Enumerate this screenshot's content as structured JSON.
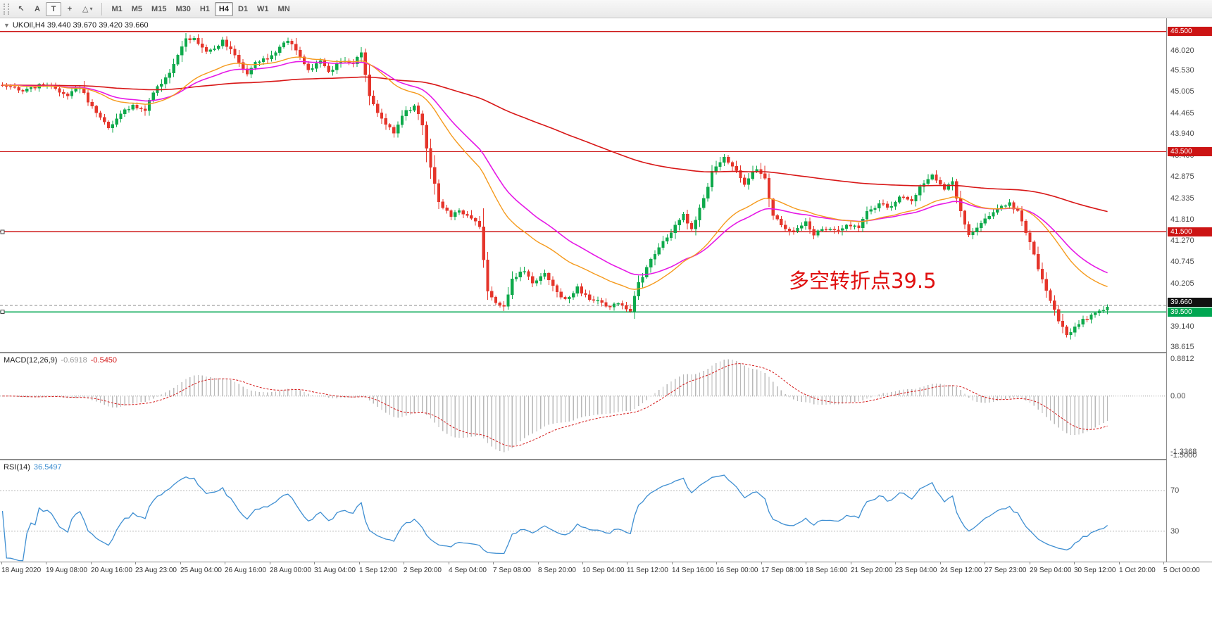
{
  "toolbar": {
    "tools": [
      {
        "name": "cursor",
        "glyph": "↖"
      },
      {
        "name": "label-a",
        "glyph": "A"
      },
      {
        "name": "text-box",
        "glyph": "T",
        "boxed": true
      },
      {
        "name": "crosshair",
        "glyph": "+"
      },
      {
        "name": "shapes",
        "glyph": "△",
        "caret": "▾"
      }
    ],
    "timeframes": [
      "M1",
      "M5",
      "M15",
      "M30",
      "H1",
      "H4",
      "D1",
      "W1",
      "MN"
    ],
    "active_timeframe": "H4"
  },
  "chart_title": {
    "collapse_icon": "▼",
    "text": "UKOil,H4 39.440 39.670 39.420 39.660"
  },
  "annotation": {
    "text": "多空转折点39.5",
    "color": "#e01010"
  },
  "chart_data": {
    "type": "candlestick",
    "symbol": "UKOil",
    "period": "H4",
    "ohlc": {
      "open": "39.440",
      "high": "39.670",
      "low": "39.420",
      "close": "39.660"
    },
    "num_candles": 272,
    "price_waypoints": [
      [
        0,
        45.15
      ],
      [
        5,
        45.0
      ],
      [
        10,
        45.2
      ],
      [
        16,
        44.9
      ],
      [
        19,
        45.1
      ],
      [
        22,
        44.6
      ],
      [
        26,
        44.1
      ],
      [
        29,
        44.45
      ],
      [
        32,
        44.65
      ],
      [
        35,
        44.5
      ],
      [
        37,
        45.0
      ],
      [
        41,
        45.45
      ],
      [
        43,
        45.9
      ],
      [
        45,
        46.3
      ],
      [
        47,
        46.35
      ],
      [
        50,
        46.0
      ],
      [
        52,
        46.1
      ],
      [
        54,
        46.25
      ],
      [
        57,
        45.9
      ],
      [
        60,
        45.45
      ],
      [
        62,
        45.7
      ],
      [
        65,
        45.85
      ],
      [
        67,
        46.0
      ],
      [
        70,
        46.3
      ],
      [
        73,
        45.9
      ],
      [
        75,
        45.55
      ],
      [
        78,
        45.75
      ],
      [
        80,
        45.5
      ],
      [
        83,
        45.75
      ],
      [
        86,
        45.7
      ],
      [
        88,
        45.95
      ],
      [
        90,
        44.9
      ],
      [
        93,
        44.3
      ],
      [
        96,
        44.0
      ],
      [
        98,
        44.4
      ],
      [
        101,
        44.65
      ],
      [
        103,
        44.2
      ],
      [
        104,
        43.6
      ],
      [
        107,
        42.2
      ],
      [
        110,
        41.9
      ],
      [
        112,
        42.05
      ],
      [
        115,
        41.85
      ],
      [
        117,
        41.6
      ],
      [
        119,
        40.0
      ],
      [
        121,
        39.7
      ],
      [
        123,
        39.6
      ],
      [
        125,
        40.3
      ],
      [
        128,
        40.55
      ],
      [
        130,
        40.2
      ],
      [
        133,
        40.45
      ],
      [
        136,
        40.0
      ],
      [
        138,
        39.8
      ],
      [
        141,
        40.1
      ],
      [
        143,
        39.9
      ],
      [
        146,
        39.75
      ],
      [
        149,
        39.65
      ],
      [
        151,
        39.7
      ],
      [
        154,
        39.55
      ],
      [
        156,
        40.2
      ],
      [
        159,
        40.8
      ],
      [
        161,
        41.1
      ],
      [
        164,
        41.5
      ],
      [
        167,
        41.9
      ],
      [
        169,
        41.6
      ],
      [
        172,
        42.3
      ],
      [
        174,
        43.0
      ],
      [
        177,
        43.35
      ],
      [
        180,
        43.0
      ],
      [
        182,
        42.7
      ],
      [
        185,
        43.1
      ],
      [
        187,
        42.8
      ],
      [
        189,
        41.9
      ],
      [
        192,
        41.6
      ],
      [
        194,
        41.5
      ],
      [
        197,
        41.75
      ],
      [
        199,
        41.45
      ],
      [
        202,
        41.6
      ],
      [
        205,
        41.5
      ],
      [
        207,
        41.7
      ],
      [
        210,
        41.6
      ],
      [
        212,
        42.0
      ],
      [
        215,
        42.2
      ],
      [
        218,
        42.1
      ],
      [
        220,
        42.4
      ],
      [
        223,
        42.3
      ],
      [
        225,
        42.6
      ],
      [
        228,
        42.9
      ],
      [
        231,
        42.6
      ],
      [
        233,
        42.75
      ],
      [
        235,
        42.0
      ],
      [
        237,
        41.4
      ],
      [
        239,
        41.6
      ],
      [
        242,
        41.9
      ],
      [
        244,
        42.1
      ],
      [
        247,
        42.2
      ],
      [
        249,
        42.0
      ],
      [
        251,
        41.5
      ],
      [
        254,
        40.6
      ],
      [
        256,
        40.0
      ],
      [
        259,
        39.3
      ],
      [
        261,
        38.9
      ],
      [
        263,
        39.15
      ],
      [
        266,
        39.35
      ],
      [
        269,
        39.5
      ],
      [
        271,
        39.66
      ]
    ],
    "y_axis": {
      "max": 46.83,
      "min": 38.5,
      "labels": [
        46.02,
        45.53,
        45.005,
        44.465,
        43.94,
        43.4,
        42.875,
        42.335,
        41.81,
        41.27,
        40.745,
        40.205,
        39.14,
        38.615
      ]
    },
    "hlines": [
      {
        "price": 46.5,
        "label": "46.500",
        "color": "#cc1414",
        "handle": false
      },
      {
        "price": 43.5,
        "label": "43.500",
        "color": "#cc1414",
        "handle": false
      },
      {
        "price": 41.5,
        "label": "41.500",
        "color": "#cc1414",
        "handle": true
      },
      {
        "price": 39.5,
        "label": "39.500",
        "color": "#00a651",
        "handle": true
      }
    ],
    "bid": {
      "price": 39.66,
      "label": "39.660",
      "box_color": "#111111",
      "line_color": "#8a8a8a"
    },
    "moving_averages": [
      {
        "name": "ma-slow",
        "period": 200,
        "color": "#d81717",
        "width": 1.6
      },
      {
        "name": "ma-medium",
        "period": 40,
        "color": "#e619e6",
        "width": 1.6
      },
      {
        "name": "ma-fast",
        "period": 28,
        "color": "#f59a1d",
        "width": 1.4
      }
    ],
    "candle_colors": {
      "bull": "#0EA94B",
      "bear": "#E5352B"
    },
    "macd": {
      "label": "MACD(12,26,9)",
      "value_main": "-0.6918",
      "value_signal": "-0.5450",
      "fast": 12,
      "slow": 26,
      "signal": 9,
      "scale_max": 1.02,
      "scale_min": -1.5,
      "peak_pos": 0.8812,
      "peak_neg": -1.3368,
      "max_label": "0.8812",
      "zero_label": "0.00",
      "min_label": "-1.3368",
      "bottom_label": "-1.5000",
      "histogram_color": "#b9b9b9",
      "signal_color": "#d41b1b"
    },
    "rsi": {
      "label": "RSI(14)",
      "value": "36.5497",
      "period": 14,
      "levels": [
        70,
        30
      ],
      "scale_max": 100,
      "scale_min": 0,
      "line_color": "#3f8fd2",
      "level_color": "#b5b5b5"
    },
    "x_labels": [
      "18 Aug 2020",
      "19 Aug 08:00",
      "20 Aug 16:00",
      "23 Aug 23:00",
      "25 Aug 04:00",
      "26 Aug 16:00",
      "28 Aug 00:00",
      "31 Aug 04:00",
      "1 Sep 12:00",
      "2 Sep 20:00",
      "4 Sep 04:00",
      "7 Sep 08:00",
      "8 Sep 20:00",
      "10 Sep 04:00",
      "11 Sep 12:00",
      "14 Sep 16:00",
      "16 Sep 00:00",
      "17 Sep 08:00",
      "18 Sep 16:00",
      "21 Sep 20:00",
      "23 Sep 04:00",
      "24 Sep 12:00",
      "27 Sep 23:00",
      "29 Sep 04:00",
      "30 Sep 12:00",
      "1 Oct 20:00",
      "5 Oct 00:00"
    ]
  }
}
